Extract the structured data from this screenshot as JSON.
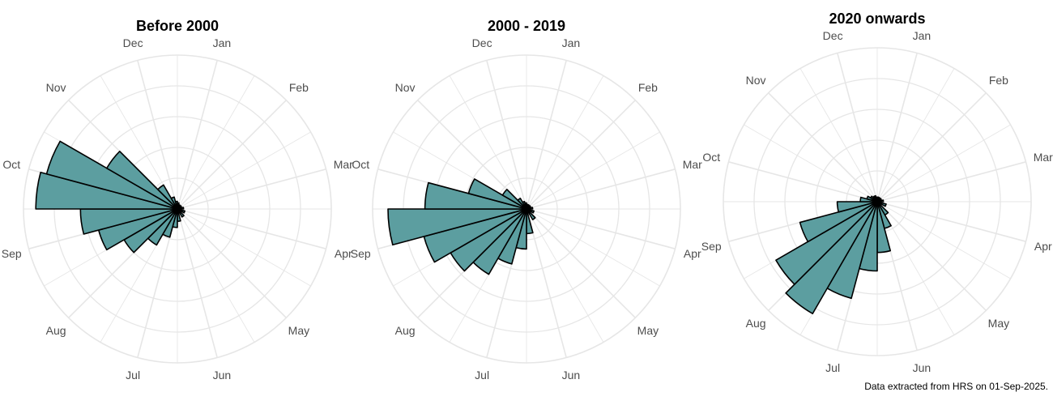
{
  "footer": "Data extracted from HRS on 01-Sep-2025.",
  "colors": {
    "bar_fill": "#5c9ea0",
    "bar_stroke": "#000000",
    "grid": "#e6e6e6"
  },
  "chart_data": [
    {
      "type": "polar_bar",
      "title": "Before 2000",
      "months": [
        "Jan",
        "Feb",
        "Mar",
        "Apr",
        "May",
        "Jun",
        "Jul",
        "Aug",
        "Sep",
        "Oct",
        "Nov",
        "Dec"
      ],
      "series": [
        {
          "x": [
            0.0,
            1.0,
            2.0,
            3.0,
            4.0,
            5.0,
            5.5,
            6.0,
            6.5,
            7.0,
            7.5,
            8.0,
            8.5,
            9.0,
            9.5,
            10.0,
            10.5,
            11.0,
            11.5
          ],
          "values": [
            0.03,
            0.03,
            0.04,
            0.05,
            0.06,
            0.08,
            0.12,
            0.19,
            0.27,
            0.4,
            0.53,
            0.63,
            0.92,
            0.88,
            0.53,
            0.18,
            0.08,
            0.05,
            0.04
          ]
        }
      ],
      "grid_rings": 5,
      "grid": true,
      "legend": "none"
    },
    {
      "type": "polar_bar",
      "title": "2000 - 2019",
      "months": [
        "Jan",
        "Feb",
        "Mar",
        "Apr",
        "May",
        "Jun",
        "Jul",
        "Aug",
        "Sep",
        "Oct",
        "Nov",
        "Dec"
      ],
      "series": [
        {
          "x": [
            0.0,
            1.0,
            2.0,
            3.0,
            4.0,
            5.0,
            5.5,
            6.0,
            6.5,
            7.0,
            7.5,
            8.0,
            8.5,
            9.0,
            9.5,
            10.0,
            10.5,
            11.0,
            11.5
          ],
          "values": [
            0.03,
            0.03,
            0.04,
            0.05,
            0.08,
            0.16,
            0.26,
            0.37,
            0.49,
            0.57,
            0.69,
            0.9,
            0.66,
            0.39,
            0.18,
            0.08,
            0.05,
            0.04,
            0.03
          ]
        }
      ],
      "grid_rings": 5,
      "grid": true,
      "legend": "none"
    },
    {
      "type": "polar_bar",
      "title": "2020 onwards",
      "months": [
        "Jan",
        "Feb",
        "Mar",
        "Apr",
        "May",
        "Jun",
        "Jul",
        "Aug",
        "Sep",
        "Oct",
        "Nov",
        "Dec"
      ],
      "series": [
        {
          "x": [
            0.0,
            1.0,
            2.0,
            3.0,
            4.0,
            4.5,
            5.0,
            5.5,
            6.0,
            6.5,
            7.0,
            7.5,
            8.0,
            8.5,
            9.0,
            9.5,
            10.0,
            10.5,
            11.0,
            11.5
          ],
          "values": [
            0.03,
            0.03,
            0.04,
            0.06,
            0.1,
            0.18,
            0.33,
            0.45,
            0.65,
            0.84,
            0.76,
            0.52,
            0.26,
            0.11,
            0.07,
            0.05,
            0.04,
            0.04,
            0.03,
            0.03
          ]
        }
      ],
      "grid_rings": 5,
      "grid": true,
      "legend": "none"
    }
  ]
}
